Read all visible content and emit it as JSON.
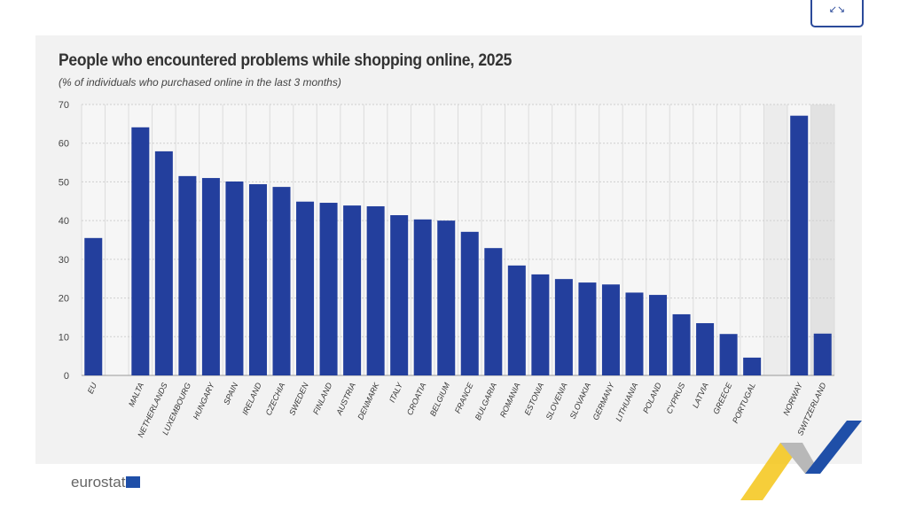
{
  "ui": {
    "expand_icon": "collapse-arrows-icon",
    "expand_glyph": "↙↘",
    "logo_text": "eurostat"
  },
  "chart_data": {
    "type": "bar",
    "title": "People who encountered problems while shopping online, 2025",
    "subtitle": "(% of individuals who purchased online in the last 3 months)",
    "xlabel": "",
    "ylabel": "",
    "ylim": [
      0,
      70
    ],
    "yticks": [
      0,
      10,
      20,
      30,
      40,
      50,
      60,
      70
    ],
    "grid": true,
    "bar_color": "#233f9d",
    "categories": [
      "EU",
      "",
      "MALTA",
      "NETHERLANDS",
      "LUXEMBOURG",
      "HUNGARY",
      "SPAIN",
      "IRELAND",
      "CZECHIA",
      "SWEDEN",
      "FINLAND",
      "AUSTRIA",
      "DENMARK",
      "ITALY",
      "CROATIA",
      "BELGIUM",
      "FRANCE",
      "BULGARIA",
      "ROMANIA",
      "ESTONIA",
      "SLOVENIA",
      "SLOVAKIA",
      "GERMANY",
      "LITHUANIA",
      "POLAND",
      "CYPRUS",
      "LATVIA",
      "GREECE",
      "PORTUGAL",
      "",
      "NORWAY",
      "SWITZERLAND"
    ],
    "values": [
      35.5,
      null,
      64.1,
      57.9,
      51.5,
      51.0,
      50.1,
      49.4,
      48.7,
      44.9,
      44.6,
      43.9,
      43.7,
      41.4,
      40.3,
      40.0,
      37.1,
      32.9,
      28.4,
      26.1,
      24.9,
      24.0,
      23.5,
      21.4,
      20.8,
      15.8,
      13.5,
      10.7,
      4.6,
      null,
      67.1,
      10.8
    ]
  }
}
